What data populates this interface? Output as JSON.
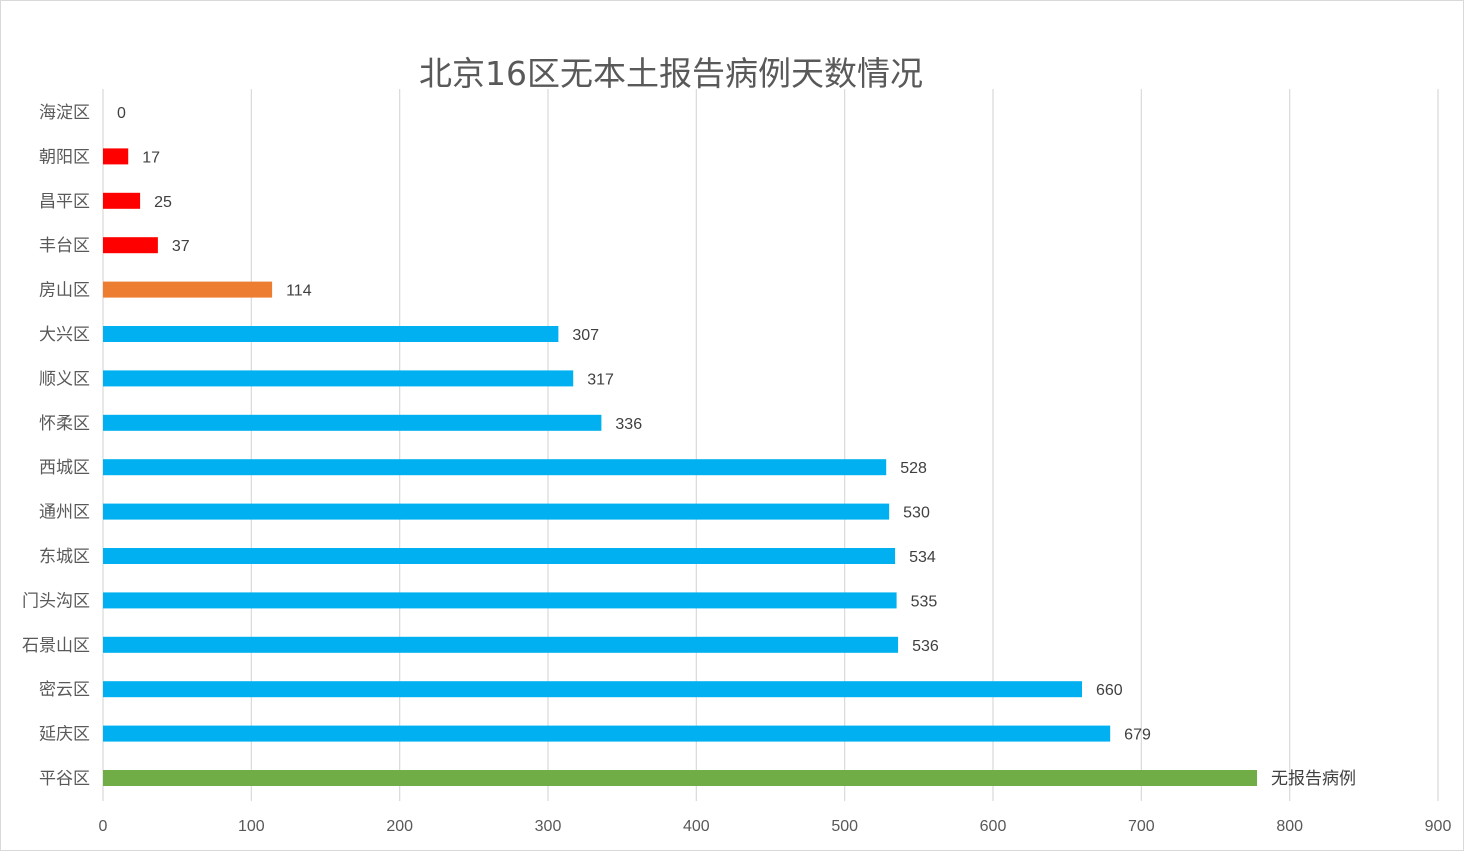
{
  "chart_data": {
    "type": "bar",
    "orientation": "horizontal",
    "title": "北京16区无本土报告病例天数情况",
    "xlabel": "",
    "ylabel": "",
    "xlim": [
      0,
      900
    ],
    "xticks": [
      0,
      100,
      200,
      300,
      400,
      500,
      600,
      700,
      800,
      900
    ],
    "grid": true,
    "legend": "none",
    "bars": [
      {
        "category": "海淀区",
        "value": 0,
        "label": "0",
        "color": "#ff0000"
      },
      {
        "category": "朝阳区",
        "value": 17,
        "label": "17",
        "color": "#ff0000"
      },
      {
        "category": "昌平区",
        "value": 25,
        "label": "25",
        "color": "#ff0000"
      },
      {
        "category": "丰台区",
        "value": 37,
        "label": "37",
        "color": "#ff0000"
      },
      {
        "category": "房山区",
        "value": 114,
        "label": "114",
        "color": "#ed7d31"
      },
      {
        "category": "大兴区",
        "value": 307,
        "label": "307",
        "color": "#00b0f0"
      },
      {
        "category": "顺义区",
        "value": 317,
        "label": "317",
        "color": "#00b0f0"
      },
      {
        "category": "怀柔区",
        "value": 336,
        "label": "336",
        "color": "#00b0f0"
      },
      {
        "category": "西城区",
        "value": 528,
        "label": "528",
        "color": "#00b0f0"
      },
      {
        "category": "通州区",
        "value": 530,
        "label": "530",
        "color": "#00b0f0"
      },
      {
        "category": "东城区",
        "value": 534,
        "label": "534",
        "color": "#00b0f0"
      },
      {
        "category": "门头沟区",
        "value": 535,
        "label": "535",
        "color": "#00b0f0"
      },
      {
        "category": "石景山区",
        "value": 536,
        "label": "536",
        "color": "#00b0f0"
      },
      {
        "category": "密云区",
        "value": 660,
        "label": "660",
        "color": "#00b0f0"
      },
      {
        "category": "延庆区",
        "value": 679,
        "label": "679",
        "color": "#00b0f0"
      },
      {
        "category": "平谷区",
        "value": 778,
        "label": "无报告病例",
        "color": "#70ad47"
      }
    ],
    "colors": {
      "grid": "#d9d9d9",
      "axis_text": "#595959",
      "label_text": "#404040"
    }
  }
}
